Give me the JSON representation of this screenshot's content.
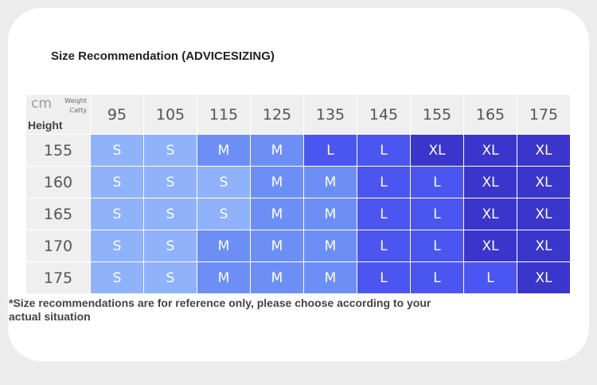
{
  "title": "Size Recommendation (ADVICESIZING)",
  "corner": {
    "weight_label": "Weight",
    "unit_weight": "Catty",
    "unit_height": "cm",
    "height_label": "Height"
  },
  "weights": [
    "95",
    "105",
    "115",
    "125",
    "135",
    "145",
    "155",
    "165",
    "175"
  ],
  "rows": [
    {
      "height": "155",
      "sizes": [
        "S",
        "S",
        "M",
        "M",
        "L",
        "L",
        "XL",
        "XL",
        "XL"
      ]
    },
    {
      "height": "160",
      "sizes": [
        "S",
        "S",
        "S",
        "M",
        "M",
        "L",
        "L",
        "XL",
        "XL"
      ]
    },
    {
      "height": "165",
      "sizes": [
        "S",
        "S",
        "S",
        "M",
        "M",
        "L",
        "L",
        "XL",
        "XL"
      ]
    },
    {
      "height": "170",
      "sizes": [
        "S",
        "S",
        "M",
        "M",
        "M",
        "L",
        "L",
        "XL",
        "XL"
      ]
    },
    {
      "height": "175",
      "sizes": [
        "S",
        "S",
        "M",
        "M",
        "M",
        "L",
        "L",
        "L",
        "XL"
      ]
    }
  ],
  "colors": {
    "S": "#8fb2fa",
    "M": "#6d8ff5",
    "L": "#4b56f0",
    "XL": "#3a36cc"
  },
  "note": "*Size recommendations are for reference only, please choose according to your actual situation"
}
